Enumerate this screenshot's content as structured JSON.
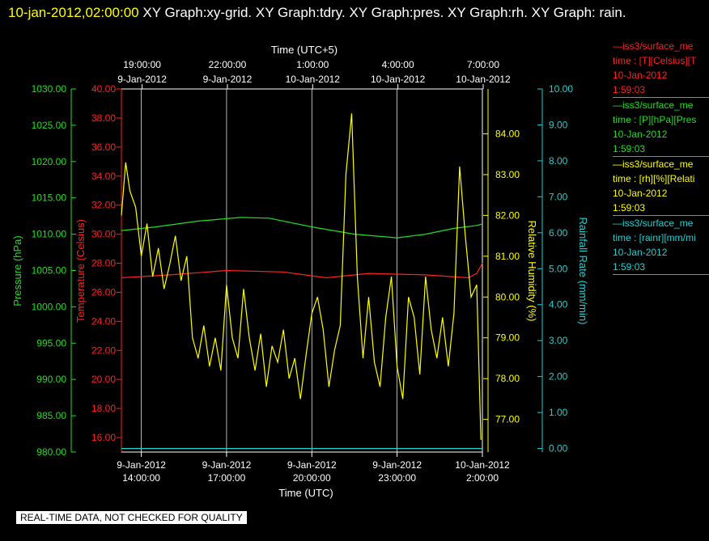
{
  "header": {
    "timestamp": "10-jan-2012,02:00:00",
    "title_rest": " XY Graph:xy-grid.  XY Graph:tdry.  XY Graph:pres.  XY Graph:rh.  XY Graph: rain."
  },
  "footer": {
    "note": "REAL-TIME DATA, NOT CHECKED FOR QUALITY"
  },
  "legend": [
    {
      "line1": "—iss3/surface_me",
      "line2": "time : [T][Celsius][T",
      "line3": "10-Jan-2012",
      "line4": "1:59:03",
      "color": "#ff2020"
    },
    {
      "line1": "—iss3/surface_me",
      "line2": "time : [P][hPa][Pres",
      "line3": "10-Jan-2012",
      "line4": "1:59:03",
      "color": "#22dd22"
    },
    {
      "line1": "—iss3/surface_me",
      "line2": "time : [rh][%][Relati",
      "line3": "10-Jan-2012",
      "line4": "1:59:03",
      "color": "#ffff00"
    },
    {
      "line1": "—iss3/surface_me",
      "line2": "time : [rainr][mm/mi",
      "line3": "10-Jan-2012",
      "line4": "1:59:03",
      "color": "#20d0d0"
    }
  ],
  "chart_data": {
    "type": "line",
    "top_axis": {
      "title": "Time (UTC+5)",
      "ticks": [
        {
          "time": "19:00:00",
          "date": "9-Jan-2012"
        },
        {
          "time": "22:00:00",
          "date": "9-Jan-2012"
        },
        {
          "time": "1:00:00",
          "date": "10-Jan-2012"
        },
        {
          "time": "4:00:00",
          "date": "10-Jan-2012"
        },
        {
          "time": "7:00:00",
          "date": "10-Jan-2012"
        }
      ]
    },
    "bottom_axis": {
      "title": "Time (UTC)",
      "range_hours_utc": [
        13.3,
        26.0
      ],
      "tick_hours_utc": [
        14,
        17,
        20,
        23,
        26
      ],
      "ticks": [
        {
          "date": "9-Jan-2012",
          "time": "14:00:00"
        },
        {
          "date": "9-Jan-2012",
          "time": "17:00:00"
        },
        {
          "date": "9-Jan-2012",
          "time": "20:00:00"
        },
        {
          "date": "9-Jan-2012",
          "time": "23:00:00"
        },
        {
          "date": "10-Jan-2012",
          "time": "2:00:00"
        }
      ]
    },
    "y_axes": {
      "pressure": {
        "title": "Pressure (hPa)",
        "range": [
          980,
          1030
        ],
        "color": "#22dd22",
        "ticks": [
          "980.00",
          "985.00",
          "990.00",
          "995.00",
          "1000.00",
          "1005.00",
          "1010.00",
          "1015.00",
          "1020.00",
          "1025.00",
          "1030.00"
        ]
      },
      "temperature": {
        "title": "Temperature (Celsius)",
        "range": [
          15,
          40
        ],
        "color": "#ff2020",
        "ticks": [
          "16.00",
          "18.00",
          "20.00",
          "22.00",
          "24.00",
          "26.00",
          "28.00",
          "30.00",
          "32.00",
          "34.00",
          "36.00",
          "38.00",
          "40.00"
        ]
      },
      "humidity": {
        "title": "Relative Humidity (%)",
        "range": [
          76.2,
          85.1
        ],
        "color": "#ffff00",
        "ticks": [
          "77.00",
          "78.00",
          "79.00",
          "80.00",
          "81.00",
          "82.00",
          "83.00",
          "84.00"
        ]
      },
      "rainfall": {
        "title": "Rainfall Rate (mm/min)",
        "range": [
          -0.1,
          10.0
        ],
        "color": "#20d0d0",
        "ticks": [
          "0.00",
          "1.00",
          "2.00",
          "3.00",
          "4.00",
          "5.00",
          "6.00",
          "7.00",
          "8.00",
          "9.00",
          "10.00"
        ]
      }
    },
    "series": [
      {
        "key": "pressure",
        "color": "#22dd22",
        "x": [
          13.3,
          14.5,
          16.0,
          17.5,
          18.5,
          20.0,
          21.5,
          23.0,
          24.0,
          25.0,
          25.8,
          26.0
        ],
        "values": [
          1010.5,
          1011.0,
          1011.8,
          1012.3,
          1012.2,
          1011.0,
          1010.0,
          1009.5,
          1010.0,
          1010.8,
          1011.2,
          1011.4
        ]
      },
      {
        "key": "temperature",
        "color": "#ff2020",
        "x": [
          13.3,
          15.0,
          17.0,
          19.0,
          20.5,
          22.0,
          24.0,
          25.5,
          25.8,
          26.0
        ],
        "values": [
          27.0,
          27.2,
          27.5,
          27.4,
          27.0,
          27.3,
          27.2,
          27.0,
          27.3,
          28.0
        ]
      },
      {
        "key": "humidity",
        "color": "#ffff00",
        "x": [
          13.3,
          13.45,
          13.6,
          13.8,
          14.0,
          14.2,
          14.4,
          14.6,
          14.8,
          15.0,
          15.2,
          15.4,
          15.6,
          15.8,
          16.0,
          16.2,
          16.4,
          16.6,
          16.8,
          17.0,
          17.2,
          17.4,
          17.6,
          17.8,
          18.0,
          18.2,
          18.4,
          18.6,
          18.8,
          19.0,
          19.2,
          19.4,
          19.6,
          19.8,
          20.0,
          20.2,
          20.4,
          20.6,
          20.8,
          21.0,
          21.2,
          21.4,
          21.6,
          21.8,
          22.0,
          22.2,
          22.4,
          22.6,
          22.8,
          23.0,
          23.2,
          23.4,
          23.6,
          23.8,
          24.0,
          24.2,
          24.4,
          24.6,
          24.8,
          25.0,
          25.2,
          25.4,
          25.6,
          25.8,
          25.95
        ],
        "values": [
          82.0,
          83.3,
          82.6,
          82.2,
          81.0,
          81.8,
          80.5,
          81.2,
          80.2,
          80.8,
          81.5,
          80.4,
          81.0,
          79.0,
          78.5,
          79.3,
          78.3,
          79.0,
          78.2,
          80.3,
          79.0,
          78.5,
          80.2,
          79.0,
          78.2,
          79.1,
          77.8,
          78.8,
          78.4,
          79.2,
          78.0,
          78.5,
          77.5,
          78.6,
          79.6,
          80.0,
          79.2,
          77.8,
          78.7,
          79.3,
          83.0,
          84.5,
          80.5,
          78.5,
          80.0,
          78.4,
          77.8,
          79.5,
          80.5,
          78.3,
          77.5,
          80.0,
          79.5,
          78.1,
          80.5,
          79.2,
          78.5,
          79.5,
          78.3,
          79.6,
          83.2,
          81.5,
          80.0,
          80.3,
          76.5
        ]
      },
      {
        "key": "rainfall",
        "color": "#20d0d0",
        "x": [
          13.3,
          26.0
        ],
        "values": [
          0.0,
          0.0
        ]
      }
    ],
    "grid": true
  }
}
